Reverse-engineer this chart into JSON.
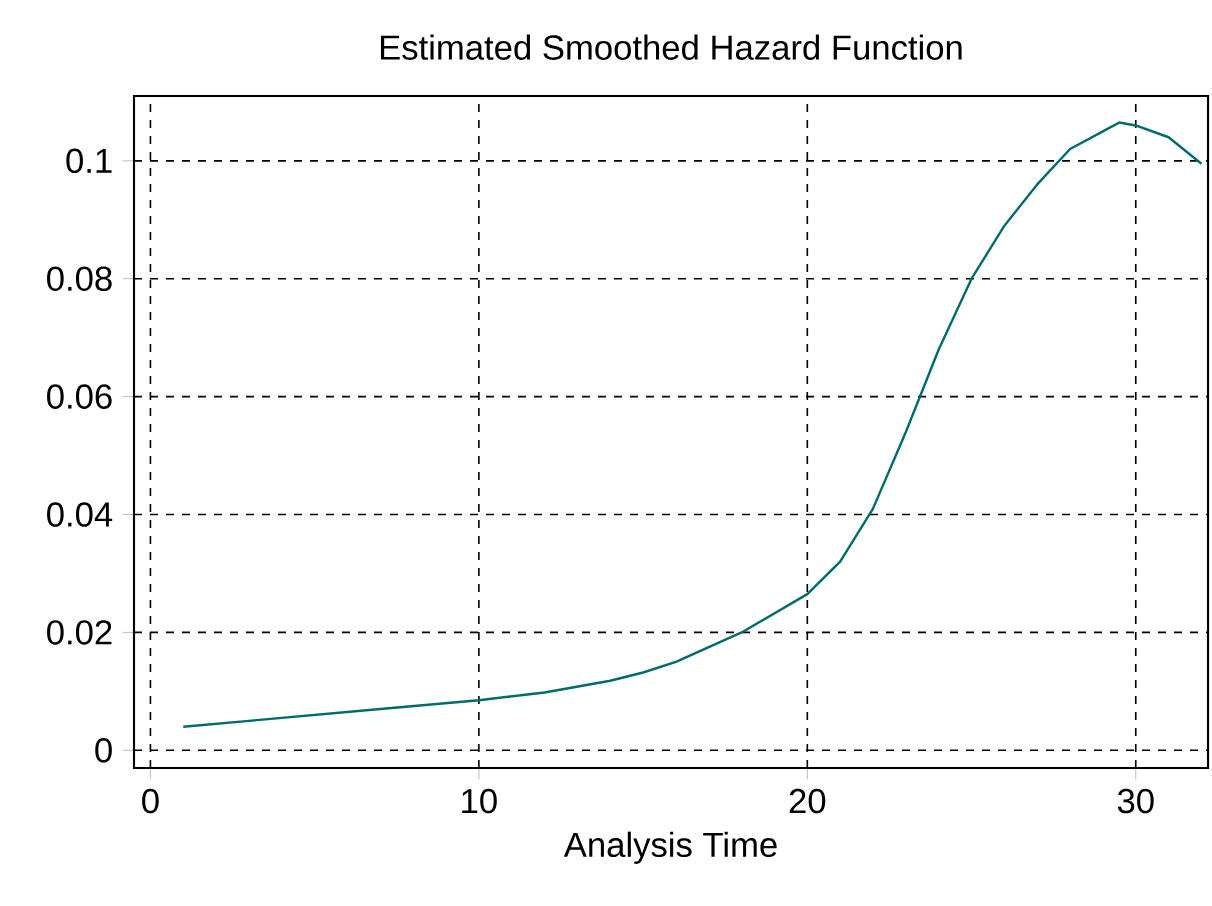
{
  "chart_data": {
    "type": "line",
    "title": "Estimated Smoothed Hazard Function",
    "xlabel": "Analysis Time",
    "x": [
      1,
      3,
      5,
      7,
      10,
      12,
      14,
      15,
      16,
      18,
      20,
      21,
      22,
      23,
      24,
      25,
      26,
      27,
      28,
      29,
      29.5,
      30,
      31,
      32
    ],
    "series": [
      {
        "color": "#006b6b",
        "values": [
          0.004,
          0.005,
          0.006,
          0.007,
          0.0085,
          0.0098,
          0.0118,
          0.0132,
          0.015,
          0.02,
          0.0265,
          0.032,
          0.041,
          0.054,
          0.068,
          0.08,
          0.089,
          0.096,
          0.102,
          0.105,
          0.1065,
          0.106,
          0.104,
          0.0995
        ]
      }
    ],
    "xlim": [
      -0.5,
      32.2
    ],
    "ylim": [
      -0.003,
      0.111
    ],
    "xticks": [
      0,
      10,
      20,
      30
    ],
    "yticks": [
      0,
      0.02,
      0.04,
      0.06,
      0.08,
      0.1
    ],
    "grid": true,
    "line_style": "solid",
    "marker": "none"
  }
}
